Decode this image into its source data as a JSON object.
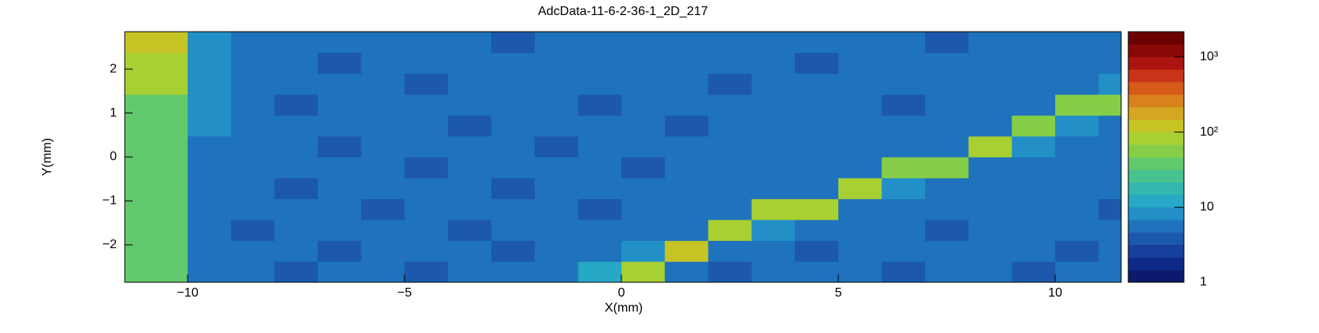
{
  "chart_data": {
    "type": "heatmap",
    "title": "AdcData-11-6-2-36-1_2D_217",
    "x_label": "X(mm)",
    "y_label": "Y(mm)",
    "xlim": [
      -11.45,
      11.52
    ],
    "ylim": [
      -2.85,
      2.85
    ],
    "xticks": [
      {
        "value": -10,
        "label": "−10"
      },
      {
        "value": -5,
        "label": "−5"
      },
      0,
      5,
      10
    ],
    "yticks": [
      {
        "value": -2,
        "label": "−2"
      },
      {
        "value": -1,
        "label": "−1"
      },
      0,
      1,
      2
    ],
    "xbins": [
      -11.45,
      -10,
      -9,
      -8,
      -7,
      -6,
      -5,
      -4,
      -3,
      -2,
      -1,
      0,
      1,
      2,
      3,
      4,
      5,
      6,
      7,
      8,
      9,
      10,
      11,
      11.52
    ],
    "ybins": [
      -2.85,
      -2.375,
      -1.9,
      -1.425,
      -0.95,
      -0.475,
      0,
      0.475,
      0.95,
      1.425,
      1.9,
      2.375,
      2.85
    ],
    "z": [
      [
        45,
        6,
        5,
        4,
        5,
        5,
        4,
        5,
        5,
        5,
        12,
        90,
        5,
        4,
        5,
        5,
        5,
        4,
        5,
        5,
        4,
        5,
        5
      ],
      [
        42,
        6,
        5,
        5,
        4,
        5,
        5,
        5,
        4,
        5,
        5,
        8,
        110,
        6,
        5,
        4,
        5,
        5,
        5,
        5,
        5,
        4,
        5
      ],
      [
        38,
        6,
        4,
        5,
        5,
        5,
        5,
        4,
        5,
        5,
        5,
        5,
        6,
        100,
        8,
        5,
        5,
        5,
        4,
        5,
        5,
        5,
        5
      ],
      [
        40,
        6,
        5,
        5,
        5,
        4,
        5,
        5,
        5,
        5,
        4,
        5,
        5,
        6,
        70,
        85,
        6,
        5,
        5,
        5,
        5,
        5,
        4
      ],
      [
        36,
        6,
        5,
        4,
        5,
        5,
        5,
        5,
        4,
        5,
        5,
        5,
        5,
        5,
        5,
        6,
        80,
        7,
        5,
        5,
        5,
        5,
        5
      ],
      [
        38,
        6,
        5,
        5,
        5,
        5,
        4,
        5,
        5,
        5,
        5,
        4,
        5,
        5,
        5,
        5,
        6,
        65,
        60,
        6,
        5,
        5,
        5
      ],
      [
        40,
        6,
        5,
        5,
        4,
        5,
        5,
        5,
        5,
        4,
        5,
        5,
        5,
        5,
        5,
        5,
        5,
        5,
        6,
        70,
        7,
        5,
        5
      ],
      [
        42,
        7,
        5,
        5,
        5,
        5,
        5,
        4,
        5,
        5,
        5,
        5,
        4,
        5,
        5,
        5,
        5,
        5,
        5,
        6,
        65,
        7,
        5
      ],
      [
        45,
        7,
        5,
        4,
        5,
        5,
        5,
        5,
        5,
        5,
        4,
        5,
        5,
        5,
        5,
        5,
        5,
        4,
        5,
        5,
        6,
        60,
        55
      ],
      [
        70,
        8,
        5,
        5,
        5,
        5,
        4,
        5,
        5,
        5,
        5,
        5,
        5,
        4,
        5,
        5,
        5,
        5,
        5,
        5,
        5,
        6,
        8
      ],
      [
        90,
        9,
        5,
        5,
        4,
        5,
        5,
        5,
        5,
        5,
        5,
        5,
        5,
        5,
        5,
        4,
        5,
        5,
        5,
        5,
        5,
        5,
        5
      ],
      [
        120,
        8,
        5,
        5,
        5,
        5,
        5,
        5,
        4,
        5,
        5,
        5,
        5,
        5,
        5,
        5,
        5,
        5,
        4,
        5,
        5,
        5,
        5
      ]
    ],
    "zlim": [
      1,
      2170
    ],
    "zscale": "log",
    "zticks": [
      1,
      10,
      {
        "value": 100,
        "label": "10²"
      },
      {
        "value": 1000,
        "label": "10³"
      }
    ],
    "palette": [
      "#0b1a6c",
      "#0e2a88",
      "#16409c",
      "#1c58ac",
      "#1f72bc",
      "#2290c6",
      "#27a8c6",
      "#34b8ae",
      "#48c28e",
      "#62c86c",
      "#86ce48",
      "#a8d032",
      "#c6c424",
      "#d4a622",
      "#d8821c",
      "#d65a18",
      "#c83418",
      "#ac1410",
      "#8a0808",
      "#6a0000"
    ]
  }
}
